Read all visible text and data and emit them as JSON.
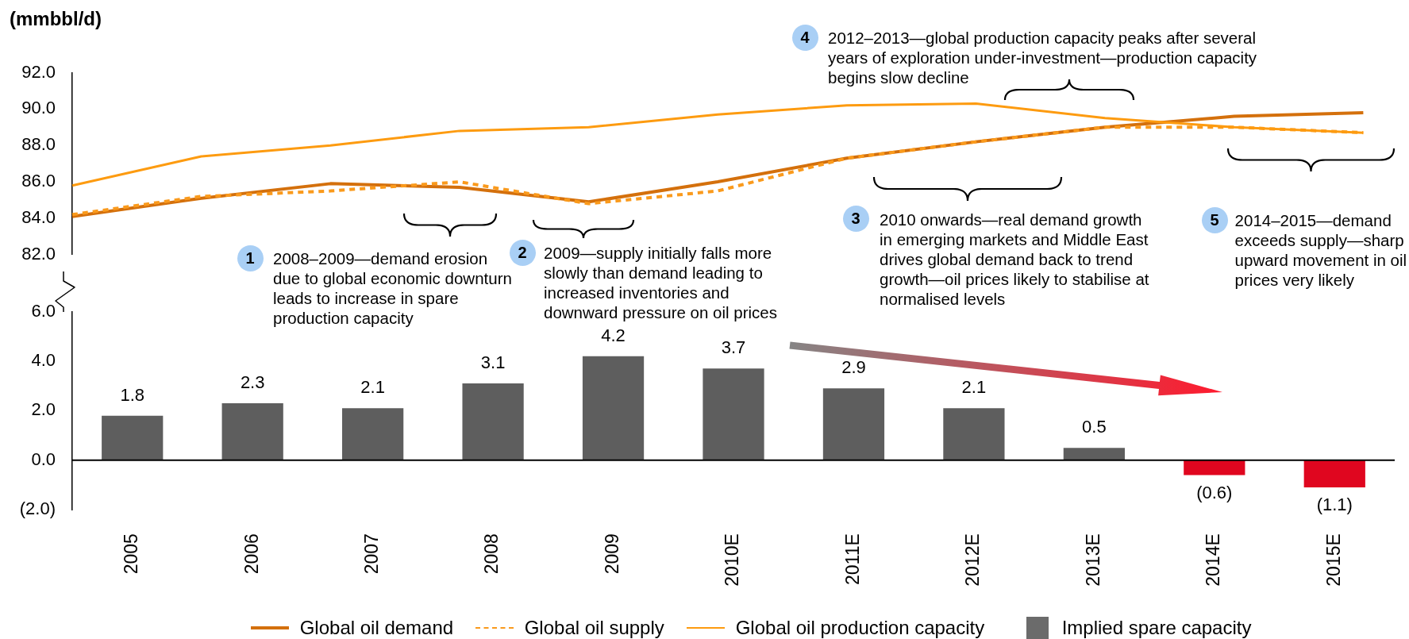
{
  "chart_data": [
    {
      "type": "line",
      "ylabel": "(mmbbl/d)",
      "categories": [
        null,
        null,
        null,
        null,
        null,
        null,
        null,
        null,
        null,
        null,
        null
      ],
      "series": [
        {
          "name": "Global oil demand",
          "color": "#d4700c",
          "values": [
            84.1,
            85.1,
            85.9,
            85.7,
            84.9,
            86.0,
            87.3,
            88.2,
            89.0,
            89.6,
            89.8
          ]
        },
        {
          "name": "Global oil supply",
          "color": "#fa9a1c",
          "line_style": "dashed",
          "values": [
            84.2,
            85.2,
            85.5,
            86.0,
            84.8,
            85.5,
            87.3,
            88.2,
            89.0,
            89.0,
            88.7
          ]
        },
        {
          "name": "Global oil production capacity",
          "color": "#fd9b10",
          "values": [
            85.8,
            87.4,
            88.0,
            88.8,
            89.0,
            89.7,
            90.2,
            90.3,
            89.5,
            89.0,
            88.7
          ]
        }
      ],
      "ylim": [
        82,
        92
      ],
      "yticks": [
        {
          "value": 82,
          "label": "82.0"
        },
        {
          "value": 84,
          "label": "84.0"
        },
        {
          "value": 86,
          "label": "86.0"
        },
        {
          "value": 88,
          "label": "88.0"
        },
        {
          "value": 90,
          "label": "90.0"
        },
        {
          "value": 92,
          "label": "92.0"
        }
      ],
      "legend": "bottom",
      "marker": "none",
      "line_style": "solid",
      "annotations": [
        "1",
        "2008–2009—demand erosion due to global economic downturn leads to increase in spare production capacity",
        "2",
        "2009—supply initially falls more slowly than demand leading to increased inventories and downward pressure on oil prices",
        "3",
        "2010 onwards—real demand growth in emerging markets and Middle East drives global demand back to trend growth—oil prices likely to stabilise at normalised levels",
        "4",
        "2012–2013—global production capacity peaks after several years of exploration under-investment—production capacity begins slow decline",
        "5",
        "2014–2015—demand exceeds supply—sharp upward movement in oil prices very likely"
      ]
    },
    {
      "type": "bar",
      "categories": [
        "2005",
        "2006",
        "2007",
        "2008",
        "2009",
        "2010E",
        "2011E",
        "2012E",
        "2013E",
        "2014E",
        "2015E"
      ],
      "series": [
        {
          "name": "Implied spare capacity",
          "color": "#6b6b6b",
          "colors": [
            "#5e5e5e",
            "#5e5e5e",
            "#5e5e5e",
            "#5e5e5e",
            "#5e5e5e",
            "#5e5e5e",
            "#5e5e5e",
            "#5e5e5e",
            "#5e5e5e",
            "#e0061f",
            "#e0061f"
          ],
          "values": [
            1.8,
            2.3,
            2.1,
            3.1,
            4.2,
            3.7,
            2.9,
            2.1,
            0.5,
            -0.6,
            -1.1
          ],
          "value_labels": [
            "1.8",
            "2.3",
            "2.1",
            "3.1",
            "4.2",
            "3.7",
            "2.9",
            "2.1",
            "0.5",
            "(0.6)",
            "(1.1)"
          ]
        }
      ],
      "ylim": [
        -2,
        6
      ],
      "yticks": [
        {
          "value": -2,
          "label": "(2.0)"
        },
        {
          "value": 0,
          "label": "0.0"
        },
        {
          "value": 2,
          "label": "2.0"
        },
        {
          "value": 4,
          "label": "4.0"
        },
        {
          "value": 6,
          "label": "6.0"
        }
      ],
      "legend": "bottom"
    }
  ]
}
